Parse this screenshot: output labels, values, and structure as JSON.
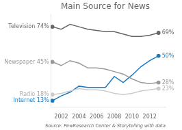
{
  "chart_data": {
    "type": "line",
    "title": "Main Source for News",
    "source": "Source: PewResearch Center & Storytelling with data",
    "x": [
      2001,
      2002,
      2003,
      2004,
      2005,
      2006,
      2007,
      2008,
      2009,
      2010,
      2011,
      2012,
      2013
    ],
    "series": [
      {
        "name": "Television",
        "color": "#666666",
        "values": [
          74,
          72,
          76,
          74,
          72,
          71,
          70,
          70,
          68,
          66,
          66,
          67,
          69
        ]
      },
      {
        "name": "Newspaper",
        "color": "#999999",
        "values": [
          45,
          42,
          46,
          44,
          40,
          40,
          39,
          37,
          35,
          31,
          28,
          27,
          28
        ]
      },
      {
        "name": "Radio",
        "color": "#cccccc",
        "values": [
          18,
          19,
          21,
          23,
          22,
          22,
          21,
          19,
          18,
          19,
          21,
          22,
          23
        ]
      },
      {
        "name": "Internet",
        "color": "#1a7abf",
        "values": [
          13,
          17,
          20,
          25,
          24,
          24,
          24,
          33,
          28,
          34,
          41,
          46,
          50
        ]
      }
    ],
    "xlim": [
      2000.8,
      2013.8
    ],
    "xticks": [
      2002,
      2004,
      2006,
      2008,
      2010,
      2012
    ],
    "ylim": [
      8,
      84
    ],
    "grid": false,
    "tick_labels": "x",
    "annotations": [
      {
        "text": "Television 74%",
        "x": 2001,
        "y": 74,
        "color": "#666666"
      },
      {
        "text": "Newspaper 45%",
        "x": 2001,
        "y": 45,
        "color": "#999999"
      },
      {
        "text": "Radio 18%",
        "x": 2001,
        "y": 18,
        "color": "#aaaaaa"
      },
      {
        "text": "Internet 13%",
        "x": 2001,
        "y": 13,
        "color": "#1a7abf"
      },
      {
        "text": "69%",
        "x": 2013,
        "y": 69,
        "color": "#666666"
      },
      {
        "text": "28%",
        "x": 2013,
        "y": 28,
        "color": "#999999"
      },
      {
        "text": "23%",
        "x": 2013,
        "y": 23,
        "color": "#aaaaaa"
      },
      {
        "text": "50%",
        "x": 2013,
        "y": 50,
        "color": "#1a7abf"
      }
    ]
  }
}
